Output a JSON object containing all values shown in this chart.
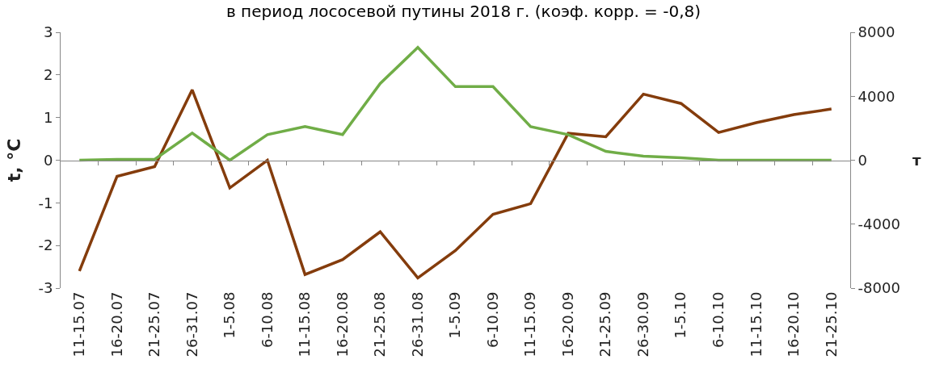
{
  "chart_data": {
    "type": "line",
    "title": "в период лососевой путины 2018 г. (коэф. корр. = -0,8)",
    "ylabel": "t, °C",
    "y2label": "т",
    "categories": [
      "11-15.07",
      "16-20.07",
      "21-25.07",
      "26-31.07",
      "1-5.08",
      "6-10.08",
      "11-15.08",
      "16-20.08",
      "21-25.08",
      "26-31.08",
      "1-5.09",
      "6-10.09",
      "11-15.09",
      "16-20.09",
      "21-25.09",
      "26-30.09",
      "1-5.10",
      "6-10.10",
      "11-15.10",
      "16-20.10",
      "21-25.10"
    ],
    "series": [
      {
        "color": "#843c0c",
        "values": [
          -2.6,
          -0.38,
          -0.15,
          1.65,
          -0.65,
          0,
          -2.68,
          -2.33,
          -1.68,
          -2.76,
          -2.12,
          -1.27,
          -1.02,
          0.63,
          0.55,
          1.55,
          1.33,
          0.65,
          0.88,
          1.07,
          1.2
        ]
      },
      {
        "color": "#70ad47",
        "axis": "y2",
        "values": [
          0,
          50,
          50,
          1700,
          0,
          1600,
          2100,
          1600,
          4800,
          7050,
          4600,
          4600,
          2100,
          1600,
          550,
          250,
          150,
          0,
          0,
          0,
          0
        ]
      }
    ],
    "ylim": [
      -3,
      3
    ],
    "yticks": [
      -3,
      -2,
      -1,
      0,
      1,
      2,
      3
    ],
    "y2lim": [
      -8000,
      8000
    ],
    "y2ticks": [
      -8000,
      -4000,
      0,
      4000,
      8000
    ],
    "marker": "none",
    "line_style": "solid"
  }
}
